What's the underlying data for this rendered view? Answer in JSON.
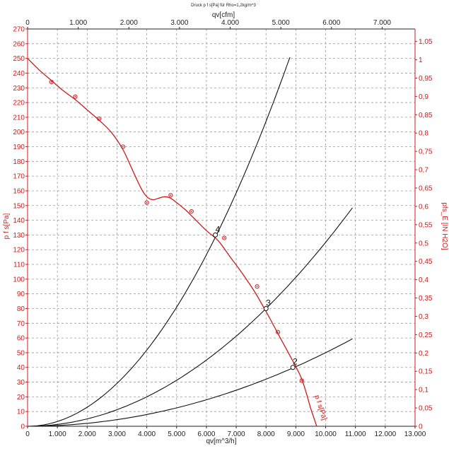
{
  "chart_data": {
    "type": "line",
    "title": "Druck p f s[Pa] für Rho=1,2kg/m^3",
    "xlabel": "qv[m^3/h]",
    "x2label": "qv[cfm]",
    "ylabel": "p f s[Pa]",
    "y2label": "pfs_E [IN H2O]",
    "xlim": [
      0,
      13000
    ],
    "ylim": [
      0,
      270
    ],
    "x2lim": [
      0,
      7650
    ],
    "y2lim": [
      0,
      1.084
    ],
    "grid": true,
    "x_ticks": [
      0,
      1000,
      2000,
      3000,
      4000,
      5000,
      6000,
      7000,
      8000,
      9000,
      10000,
      11000,
      12000,
      13000
    ],
    "x_tick_labels": [
      "0",
      "1.000",
      "2.000",
      "3.000",
      "4.000",
      "5.000",
      "6.000",
      "7.000",
      "8.000",
      "9.000",
      "10.000",
      "11.000",
      "12.000",
      "13.000"
    ],
    "x2_ticks": [
      0,
      1000,
      2000,
      3000,
      4000,
      5000,
      6000,
      7000
    ],
    "x2_tick_labels": [
      "0",
      "1.000",
      "2.000",
      "3.000",
      "4.000",
      "5.000",
      "6.000",
      "7.000"
    ],
    "y_ticks": [
      0,
      10,
      20,
      30,
      40,
      50,
      60,
      70,
      80,
      90,
      100,
      110,
      120,
      130,
      140,
      150,
      160,
      170,
      180,
      190,
      200,
      210,
      220,
      230,
      240,
      250,
      260,
      270
    ],
    "y2_ticks": [
      0,
      0.05,
      0.1,
      0.15,
      0.2,
      0.25,
      0.3,
      0.35,
      0.4,
      0.45,
      0.5,
      0.55,
      0.6,
      0.65,
      0.7,
      0.75,
      0.8,
      0.85,
      0.9,
      0.95,
      1,
      1.05
    ],
    "y2_tick_labels": [
      "0",
      "0,05",
      "0,1",
      "0,15",
      "0,2",
      "0,25",
      "0,3",
      "0,35",
      "0,4",
      "0,45",
      "0,5",
      "0,55",
      "0,6",
      "0,65",
      "0,7",
      "0,75",
      "0,8",
      "0,85",
      "0,9",
      "0,95",
      "1",
      "1,05"
    ],
    "fan_curve": {
      "name": "p f s[Pa]",
      "color": "#cc1a1a",
      "x": [
        0,
        400,
        800,
        1200,
        1600,
        2000,
        2400,
        2800,
        3200,
        3500,
        3800,
        4000,
        4200,
        4400,
        4600,
        4800,
        5000,
        5300,
        5600,
        6000,
        6400,
        6800,
        7200,
        7600,
        8000,
        8400,
        8800,
        9200,
        9500,
        9600,
        9700
      ],
      "y": [
        250,
        242,
        235,
        228,
        222,
        215,
        208,
        200,
        188,
        175,
        162,
        156,
        154,
        155,
        156,
        155,
        152,
        147,
        141,
        133,
        126,
        115,
        104,
        92,
        78,
        63,
        48,
        32,
        12,
        6,
        0
      ]
    },
    "measured_points": {
      "x": [
        800,
        1600,
        2400,
        3200,
        4000,
        4800,
        5500,
        6600,
        7700,
        8400,
        9200
      ],
      "y": [
        234,
        224,
        209,
        190,
        152,
        157,
        146,
        128,
        95,
        64,
        31
      ]
    },
    "system_curves": [
      {
        "id": "4",
        "k": 3.238e-06,
        "x_max": 8800
      },
      {
        "id": "3",
        "k": 1.25e-06,
        "x_max": 10900
      },
      {
        "id": "2",
        "k": 5e-07,
        "x_max": 10900
      }
    ],
    "operating_points": [
      {
        "label": "4",
        "x": 6300,
        "y": 130
      },
      {
        "label": "3",
        "x": 8000,
        "y": 80
      },
      {
        "label": "2",
        "x": 8900,
        "y": 40
      }
    ]
  }
}
